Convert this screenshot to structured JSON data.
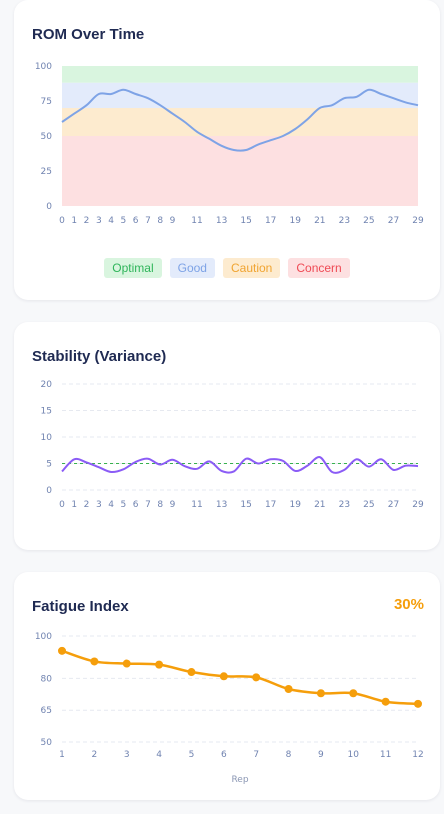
{
  "rom": {
    "title": "ROM Over Time",
    "legend": [
      {
        "label": "Optimal",
        "bg": "#d9f5df",
        "fg": "#2fb55a"
      },
      {
        "label": "Good",
        "bg": "#e3ebfb",
        "fg": "#7ea3e6"
      },
      {
        "label": "Caution",
        "bg": "#fdebcf",
        "fg": "#f0a431"
      },
      {
        "label": "Concern",
        "bg": "#fde0e1",
        "fg": "#ef4a55"
      }
    ]
  },
  "stability": {
    "title": "Stability (Variance)"
  },
  "fatigue": {
    "title": "Fatigue Index",
    "percent": "30%",
    "xlabel": "Rep"
  },
  "chart_data": [
    {
      "type": "area",
      "title": "ROM Over Time",
      "x": [
        0,
        1,
        2,
        3,
        4,
        5,
        6,
        7,
        8,
        9,
        10,
        11,
        12,
        13,
        14,
        15,
        16,
        17,
        18,
        19,
        20,
        21,
        22,
        23,
        24,
        25,
        26,
        27,
        28,
        29
      ],
      "xticks": [
        0,
        1,
        2,
        3,
        4,
        5,
        6,
        7,
        8,
        9,
        11,
        13,
        15,
        17,
        19,
        21,
        23,
        25,
        27,
        29
      ],
      "ylim": [
        0,
        100
      ],
      "yticks": [
        0,
        25,
        50,
        75,
        100
      ],
      "bands": [
        {
          "name": "Optimal",
          "from": 88,
          "to": 100,
          "color": "#d9f5df"
        },
        {
          "name": "Good",
          "from": 70,
          "to": 88,
          "color": "#e3ebfb"
        },
        {
          "name": "Caution",
          "from": 50,
          "to": 70,
          "color": "#fdebcf"
        },
        {
          "name": "Concern",
          "from": 0,
          "to": 50,
          "color": "#fde0e1"
        }
      ],
      "series": [
        {
          "values": [
            60,
            66,
            72,
            80,
            80,
            83,
            80,
            77,
            72,
            66,
            60,
            53,
            48,
            43,
            40,
            40,
            44,
            47,
            50,
            55,
            62,
            70,
            72,
            77,
            78,
            83,
            80,
            77,
            74,
            72
          ],
          "color": "#7ea3e6"
        }
      ]
    },
    {
      "type": "line",
      "title": "Stability (Variance)",
      "x": [
        0,
        1,
        2,
        3,
        4,
        5,
        6,
        7,
        8,
        9,
        10,
        11,
        12,
        13,
        14,
        15,
        16,
        17,
        18,
        19,
        20,
        21,
        22,
        23,
        24,
        25,
        26,
        27,
        28,
        29
      ],
      "xticks": [
        0,
        1,
        2,
        3,
        4,
        5,
        6,
        7,
        8,
        9,
        11,
        13,
        15,
        17,
        19,
        21,
        23,
        25,
        27,
        29
      ],
      "ylim": [
        0,
        20
      ],
      "yticks": [
        0,
        5,
        10,
        15,
        20
      ],
      "reference": {
        "value": 5,
        "color": "#37b24d"
      },
      "series": [
        {
          "values": [
            3.5,
            5.8,
            5.2,
            4.3,
            3.4,
            3.9,
            5.3,
            5.9,
            4.8,
            5.7,
            4.5,
            4.0,
            5.4,
            3.6,
            3.5,
            5.9,
            5.0,
            5.8,
            5.5,
            3.6,
            4.6,
            6.2,
            3.4,
            3.8,
            5.8,
            4.4,
            5.8,
            3.8,
            4.6,
            4.5
          ],
          "color": "#8b5cf6"
        }
      ]
    },
    {
      "type": "line",
      "title": "Fatigue Index",
      "x": [
        1,
        2,
        3,
        4,
        5,
        6,
        7,
        8,
        9,
        10,
        11,
        12
      ],
      "ylim": [
        50,
        100
      ],
      "yticks": [
        50,
        65,
        80,
        100
      ],
      "xlabel": "Rep",
      "series": [
        {
          "values": [
            93,
            88,
            87,
            86.5,
            83,
            81,
            80.5,
            75,
            73,
            73,
            69,
            68
          ],
          "color": "#f59e0b"
        }
      ]
    }
  ]
}
